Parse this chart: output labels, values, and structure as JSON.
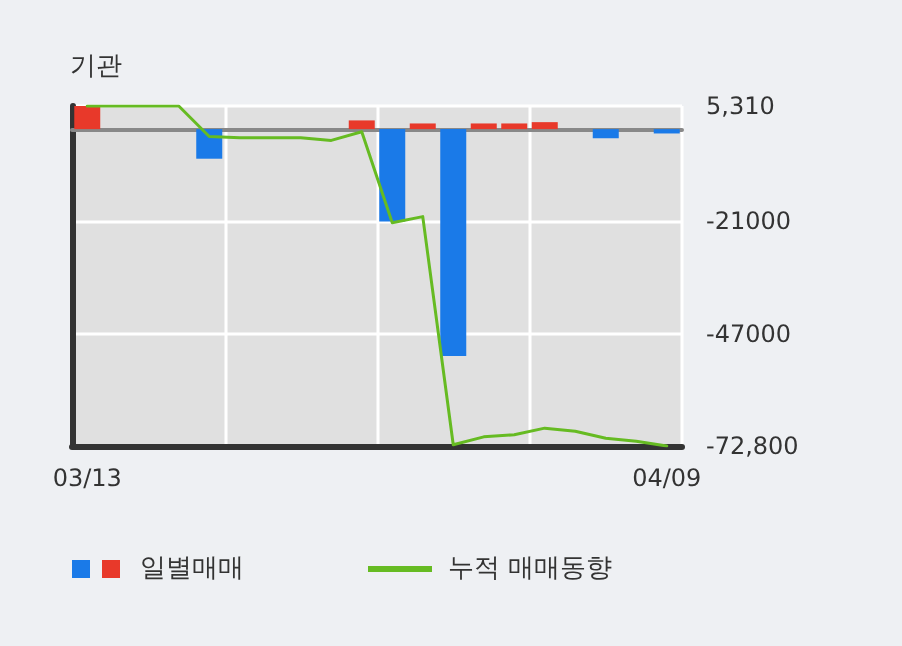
{
  "chart_data": {
    "type": "bar",
    "title": "기관",
    "categories": [
      "03/13",
      null,
      null,
      null,
      null,
      null,
      null,
      null,
      null,
      null,
      null,
      null,
      null,
      null,
      null,
      null,
      null,
      null,
      null,
      "04/09"
    ],
    "series": [
      {
        "name": "일별매매",
        "colors": [
          "#e8392a",
          "#1a7ae8",
          "#1a7ae8",
          "#1a7ae8",
          "#1a7ae8",
          "#1a7ae8",
          "#1a7ae8",
          "#1a7ae8",
          "#1a7ae8",
          "#e8392a",
          "#1a7ae8",
          "#e8392a",
          "#1a7ae8",
          "#e8392a",
          "#e8392a",
          "#e8392a",
          "#1a7ae8",
          "#1a7ae8",
          "#1a7ae8",
          "#1a7ae8"
        ],
        "values": [
          5310,
          0,
          0,
          0,
          -6800,
          0,
          0,
          0,
          0,
          2000,
          -21200,
          1300,
          -52100,
          1300,
          1300,
          1600,
          0,
          -2100,
          0,
          -1000
        ]
      },
      {
        "name": "누적 매매동향",
        "type": "line",
        "color": "#66bb22",
        "values": [
          5310,
          5310,
          5310,
          5310,
          -1700,
          -2000,
          -2000,
          -2000,
          -2600,
          -600,
          -21500,
          -20100,
          -72500,
          -70700,
          -70200,
          -68700,
          -69400,
          -71000,
          -71700,
          -72800
        ]
      }
    ],
    "ylim": [
      -72800,
      5310
    ],
    "yticks": [
      {
        "value": 5310,
        "label": "5,310"
      },
      -21000,
      -47000,
      {
        "value": -72800,
        "label": "-72,800"
      }
    ],
    "grid": true,
    "legend": "bottom left",
    "marker": "none",
    "line_style": "solid"
  }
}
